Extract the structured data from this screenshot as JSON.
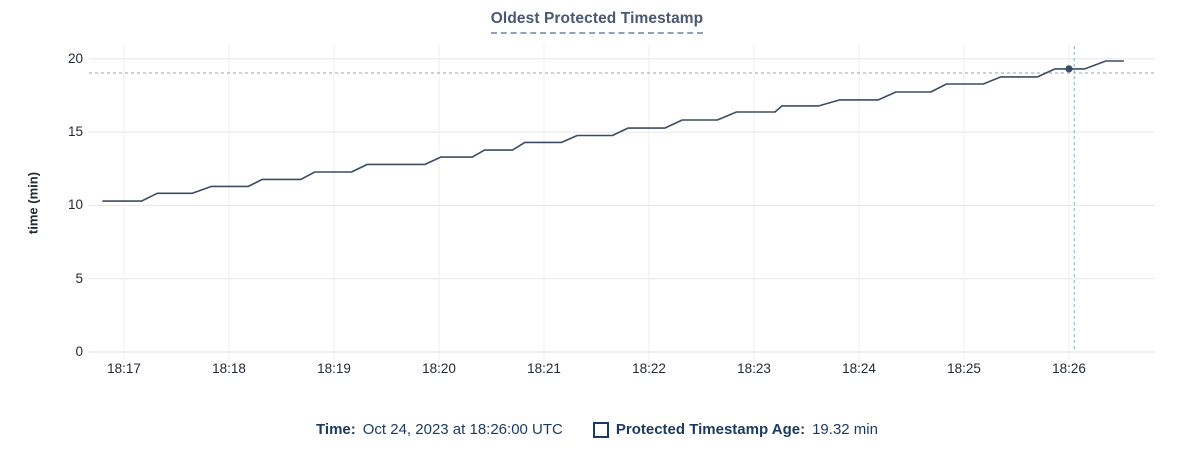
{
  "legend": {
    "time_label": "Time:",
    "time_value": "Oct 24, 2023 at 18:26:00 UTC",
    "series_swatch_icon": "hollow-square",
    "series_label": "Protected Timestamp Age:",
    "series_value": "19.32 min"
  },
  "chart_data": {
    "type": "line",
    "title": "Oldest Protected Timestamp",
    "xlabel": "",
    "ylabel": "time (min)",
    "ylim": [
      0,
      20
    ],
    "yticks": [
      0,
      5,
      10,
      15,
      20
    ],
    "xticks": [
      "18:17",
      "18:18",
      "18:19",
      "18:20",
      "18:21",
      "18:22",
      "18:23",
      "18:24",
      "18:25",
      "18:26"
    ],
    "x_range": [
      "18:16:48",
      "18:26:31"
    ],
    "grid": true,
    "line_style": "staircase",
    "legend_position": "bottom",
    "series": [
      {
        "name": "Protected Timestamp Age",
        "unit": "min",
        "points": [
          [
            "18:16:48",
            10.3
          ],
          [
            "18:17:10",
            10.3
          ],
          [
            "18:17:19",
            10.83
          ],
          [
            "18:17:39",
            10.83
          ],
          [
            "18:17:50",
            11.3
          ],
          [
            "18:18:11",
            11.3
          ],
          [
            "18:18:19",
            11.78
          ],
          [
            "18:18:41",
            11.78
          ],
          [
            "18:18:49",
            12.28
          ],
          [
            "18:19:10",
            12.28
          ],
          [
            "18:19:19",
            12.8
          ],
          [
            "18:19:52",
            12.8
          ],
          [
            "18:20:01",
            13.3
          ],
          [
            "18:20:19",
            13.3
          ],
          [
            "18:20:26",
            13.78
          ],
          [
            "18:20:42",
            13.78
          ],
          [
            "18:20:49",
            14.3
          ],
          [
            "18:21:10",
            14.3
          ],
          [
            "18:21:19",
            14.77
          ],
          [
            "18:21:39",
            14.77
          ],
          [
            "18:21:48",
            15.28
          ],
          [
            "18:22:09",
            15.28
          ],
          [
            "18:22:19",
            15.83
          ],
          [
            "18:22:39",
            15.83
          ],
          [
            "18:22:50",
            16.38
          ],
          [
            "18:23:12",
            16.38
          ],
          [
            "18:23:16",
            16.79
          ],
          [
            "18:23:37",
            16.79
          ],
          [
            "18:23:49",
            17.2
          ],
          [
            "18:24:11",
            17.2
          ],
          [
            "18:24:21",
            17.74
          ],
          [
            "18:24:41",
            17.74
          ],
          [
            "18:24:50",
            18.29
          ],
          [
            "18:25:11",
            18.29
          ],
          [
            "18:25:21",
            18.77
          ],
          [
            "18:25:42",
            18.77
          ],
          [
            "18:25:52",
            19.32
          ],
          [
            "18:26:09",
            19.32
          ],
          [
            "18:26:21",
            19.86
          ],
          [
            "18:26:31",
            19.86
          ]
        ]
      }
    ],
    "hover": {
      "cursor_time": "18:26:03",
      "cursor_value_min": 19.04,
      "snapped_time": "18:26:00",
      "snapped_value_min": 19.32
    },
    "colors": {
      "line": "#3e4c63",
      "dot": "#3e4c63",
      "grid_h": "#e8e8e8",
      "grid_v": "#efefef",
      "baseline": "#e2e2e2",
      "crosshair": "#a2b7c6",
      "title": "#475872",
      "legend_text": "#1b3a5f",
      "tick_text": "#242a35"
    }
  }
}
